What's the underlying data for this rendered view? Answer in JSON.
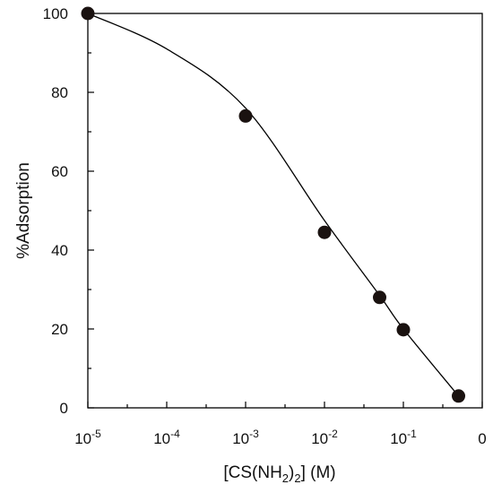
{
  "chart_data": {
    "type": "scatter",
    "title": "",
    "xlabel": "[CS(NH2)2] (M)",
    "xlabel_parts": {
      "pre": "[CS(NH",
      "sub1": "2",
      "mid": ")",
      "sub2": "2",
      "post": "] (M)"
    },
    "ylabel": "%Adsorption",
    "x_scale": "log",
    "ylim": [
      0,
      100
    ],
    "x_ticks": [
      {
        "base": "10",
        "exp": "-5"
      },
      {
        "base": "10",
        "exp": "-4"
      },
      {
        "base": "10",
        "exp": "-3"
      },
      {
        "base": "10",
        "exp": "-2"
      },
      {
        "base": "10",
        "exp": "-1"
      },
      {
        "base": "0",
        "exp": ""
      }
    ],
    "y_ticks": [
      "0",
      "20",
      "40",
      "60",
      "80",
      "100"
    ],
    "grid": false,
    "legend": "none",
    "series": [
      {
        "x": [
          1e-05,
          0.001,
          0.01,
          0.05,
          0.1,
          0.5
        ],
        "y": [
          100,
          74,
          44.5,
          28,
          19.8,
          3
        ],
        "marker": "filled-circle",
        "color": "#1a1210"
      }
    ],
    "fit_curve": {
      "style": "smooth-line",
      "color": "#000000",
      "x": [
        1e-05,
        0.0001,
        0.001,
        0.01,
        0.05,
        0.1,
        0.5
      ],
      "y": [
        100,
        91,
        76,
        47.5,
        28.5,
        20,
        3
      ]
    }
  }
}
